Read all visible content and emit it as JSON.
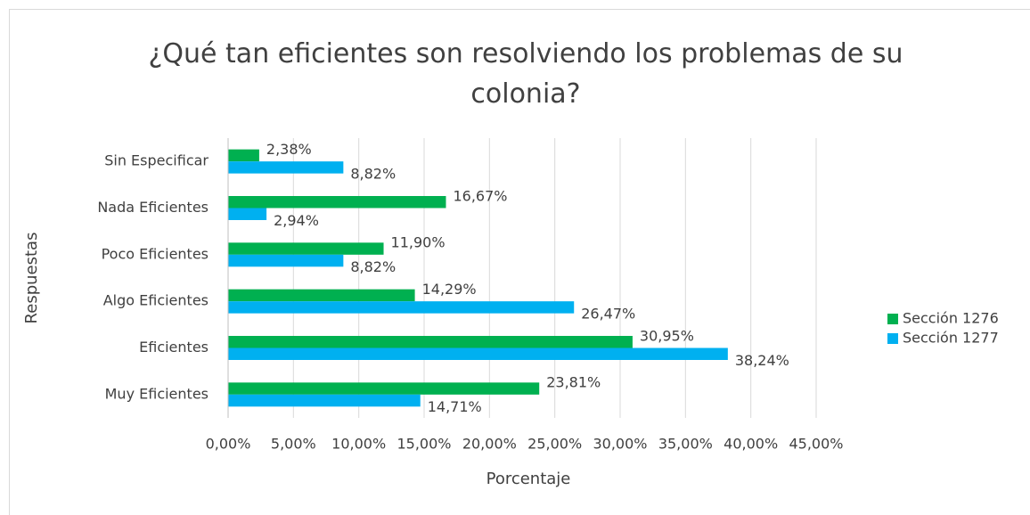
{
  "chart_data": {
    "type": "barh",
    "title": "¿Qué tan eficientes son resolviendo los problemas de su colonia?",
    "x_label": "Porcentaje",
    "y_label": "Respuestas",
    "categories": [
      "Sin Especificar",
      "Nada Eficientes",
      "Poco Eficientes",
      "Algo Eficientes",
      "Eficientes",
      "Muy Eficientes"
    ],
    "series": [
      {
        "name": "Sección 1276",
        "color": "#00b050",
        "values": [
          2.38,
          16.67,
          11.9,
          14.29,
          30.95,
          23.81
        ],
        "value_labels": [
          "2,38%",
          "16,67%",
          "11,90%",
          "14,29%",
          "30,95%",
          "23,81%"
        ]
      },
      {
        "name": "Sección 1277",
        "color": "#00b0f0",
        "values": [
          8.82,
          2.94,
          8.82,
          26.47,
          38.24,
          14.71
        ],
        "value_labels": [
          "8,82%",
          "2,94%",
          "8,82%",
          "26,47%",
          "38,24%",
          "14,71%"
        ]
      }
    ],
    "xlim": [
      0,
      45
    ],
    "xticks": [
      {
        "value": 0,
        "label": "0,00%"
      },
      {
        "value": 5,
        "label": "5,00%"
      },
      {
        "value": 10,
        "label": "10,00%"
      },
      {
        "value": 15,
        "label": "15,00%"
      },
      {
        "value": 20,
        "label": "20,00%"
      },
      {
        "value": 25,
        "label": "25,00%"
      },
      {
        "value": 30,
        "label": "30,00%"
      },
      {
        "value": 35,
        "label": "35,00%"
      },
      {
        "value": 40,
        "label": "40,00%"
      },
      {
        "value": 45,
        "label": "45,00%"
      }
    ],
    "grid": true,
    "legend": "right"
  }
}
